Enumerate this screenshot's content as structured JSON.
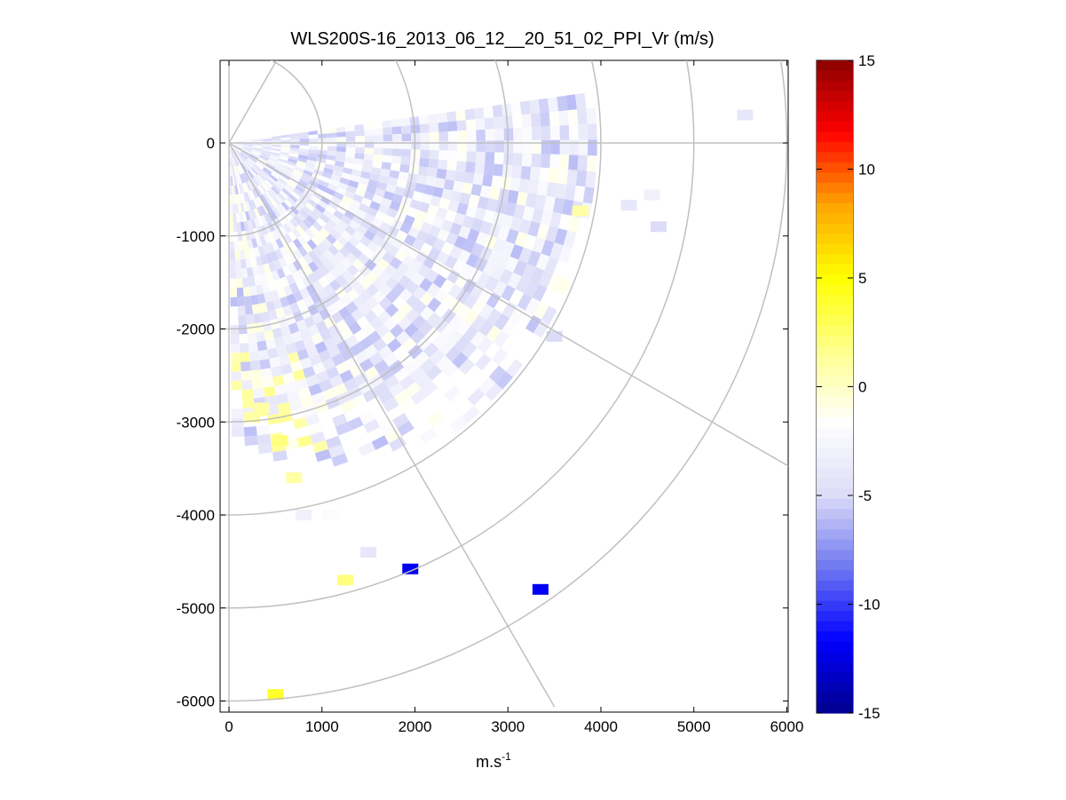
{
  "chart_data": {
    "type": "heatmap",
    "subtype": "polar-ppi-scan",
    "title": "WLS200S-16_2013_06_12__20_51_02_PPI_Vr (m/s)",
    "xlabel": "m.s",
    "xlabel_superscript": "-1",
    "ylabel": "",
    "xlim": [
      -100,
      6000
    ],
    "ylim": [
      -6100,
      950
    ],
    "xticks": [
      0,
      1000,
      2000,
      3000,
      4000,
      5000,
      6000
    ],
    "xtick_labels": [
      "0",
      "1000",
      "2000",
      "3000",
      "4000",
      "5000",
      "6000"
    ],
    "yticks": [
      0,
      -1000,
      -2000,
      -3000,
      -4000,
      -5000,
      -6000
    ],
    "ytick_labels": [
      "0",
      "-1000",
      "-2000",
      "-3000",
      "-4000",
      "-5000",
      "-6000"
    ],
    "polar_grid": {
      "range_rings": [
        1000,
        2000,
        3000,
        4000,
        5000,
        6000
      ],
      "radial_angles_deg": [
        0,
        -30,
        -60,
        -90,
        60,
        90
      ],
      "color": "#c0c0c0"
    },
    "scan": {
      "start_azimuth_deg": 8,
      "end_azimuth_deg": -89,
      "max_range_m": 3900,
      "dominant_value_range": [
        -6,
        -1
      ]
    },
    "isolated_cells": [
      {
        "x": 5550,
        "y": 300,
        "value": -4
      },
      {
        "x": 4550,
        "y": -560,
        "value": -3
      },
      {
        "x": 4620,
        "y": -900,
        "value": -5
      },
      {
        "x": 4300,
        "y": -670,
        "value": -4
      },
      {
        "x": 3780,
        "y": -730,
        "value": 1
      },
      {
        "x": 3500,
        "y": -2080,
        "value": -5
      },
      {
        "x": 3350,
        "y": -4800,
        "value": -12
      },
      {
        "x": 1950,
        "y": -4580,
        "value": -12
      },
      {
        "x": 1500,
        "y": -4400,
        "value": -4
      },
      {
        "x": 1250,
        "y": -4700,
        "value": 2
      },
      {
        "x": 500,
        "y": -5930,
        "value": 4
      },
      {
        "x": 1100,
        "y": -4000,
        "value": -2
      },
      {
        "x": 800,
        "y": -4000,
        "value": -3
      },
      {
        "x": 350,
        "y": -2850,
        "value": 1
      },
      {
        "x": 250,
        "y": -2950,
        "value": 1
      },
      {
        "x": 550,
        "y": -3200,
        "value": 2
      },
      {
        "x": 700,
        "y": -3600,
        "value": 1
      }
    ],
    "colorbar": {
      "min": -15,
      "max": 15,
      "ticks": [
        15,
        10,
        5,
        0,
        -5,
        -10,
        -15
      ],
      "tick_labels": [
        "15",
        "10",
        "5",
        "0",
        "-5",
        "-10",
        "-15"
      ],
      "colormap": [
        "#00008c",
        "#0000ff",
        "#6e78f0",
        "#dcdcf8",
        "#ffffff",
        "#ffff8c",
        "#ffff00",
        "#ffa500",
        "#ff0000",
        "#8b0000"
      ],
      "legend_position": "right"
    }
  }
}
